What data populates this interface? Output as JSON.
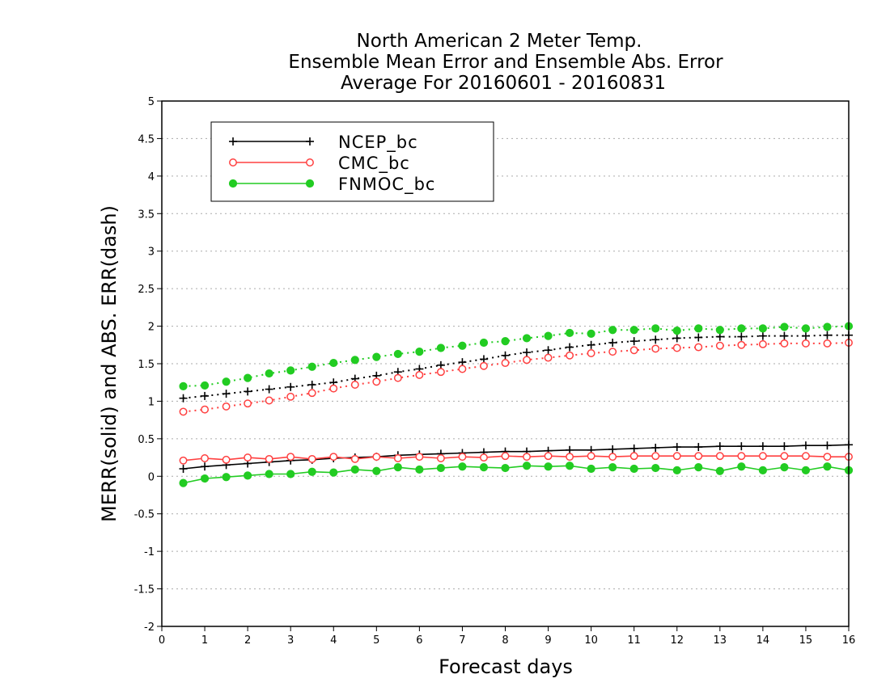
{
  "chart_data": {
    "type": "line",
    "title": [
      "North American 2 Meter Temp.",
      "Ensemble Mean Error and Ensemble Abs. Error",
      "Average For 20160601 - 20160831"
    ],
    "xlabel": "Forecast days",
    "ylabel": "MERR(solid) and ABS. ERR(dash)",
    "xlim": [
      0,
      16
    ],
    "ylim": [
      -2,
      5
    ],
    "xticks": [
      "0",
      "1",
      "2",
      "3",
      "4",
      "5",
      "6",
      "7",
      "8",
      "9",
      "10",
      "11",
      "12",
      "13",
      "14",
      "15",
      "16"
    ],
    "yticks": [
      "-2",
      "-1.5",
      "-1",
      "-0.5",
      "0",
      "0.5",
      "1",
      "1.5",
      "2",
      "2.5",
      "3",
      "3.5",
      "4",
      "4.5",
      "5"
    ],
    "grid": "horizontal dotted",
    "legend_position": "top-left",
    "x": [
      0.5,
      1,
      1.5,
      2,
      2.5,
      3,
      3.5,
      4,
      4.5,
      5,
      5.5,
      6,
      6.5,
      7,
      7.5,
      8,
      8.5,
      9,
      9.5,
      10,
      10.5,
      11,
      11.5,
      12,
      12.5,
      13,
      13.5,
      14,
      14.5,
      15,
      15.5,
      16
    ],
    "series": [
      {
        "name": "NCEP_bc",
        "color": "#000000",
        "marker": "plus",
        "style": "solid",
        "values": [
          0.1,
          0.13,
          0.15,
          0.17,
          0.19,
          0.21,
          0.22,
          0.24,
          0.25,
          0.26,
          0.28,
          0.29,
          0.3,
          0.31,
          0.32,
          0.33,
          0.33,
          0.34,
          0.35,
          0.35,
          0.36,
          0.37,
          0.38,
          0.39,
          0.39,
          0.4,
          0.4,
          0.4,
          0.4,
          0.41,
          0.41,
          0.42
        ]
      },
      {
        "name": "CMC_bc",
        "color": "#ff4040",
        "marker": "open-circle",
        "style": "solid",
        "values": [
          0.21,
          0.24,
          0.22,
          0.25,
          0.23,
          0.26,
          0.23,
          0.26,
          0.23,
          0.26,
          0.24,
          0.26,
          0.24,
          0.26,
          0.25,
          0.27,
          0.26,
          0.27,
          0.26,
          0.27,
          0.26,
          0.27,
          0.27,
          0.27,
          0.27,
          0.27,
          0.27,
          0.27,
          0.27,
          0.27,
          0.26,
          0.26
        ]
      },
      {
        "name": "FNMOC_bc",
        "color": "#22cc22",
        "marker": "filled-circle",
        "style": "solid",
        "values": [
          -0.09,
          -0.03,
          -0.01,
          0.01,
          0.03,
          0.03,
          0.06,
          0.05,
          0.09,
          0.07,
          0.12,
          0.09,
          0.11,
          0.13,
          0.12,
          0.11,
          0.14,
          0.13,
          0.14,
          0.1,
          0.12,
          0.1,
          0.11,
          0.08,
          0.12,
          0.07,
          0.13,
          0.08,
          0.12,
          0.08,
          0.13,
          0.08
        ]
      },
      {
        "name": "NCEP_bc abs. error",
        "color": "#000000",
        "marker": "plus",
        "style": "dotted",
        "values": [
          1.04,
          1.07,
          1.1,
          1.13,
          1.16,
          1.19,
          1.22,
          1.25,
          1.3,
          1.34,
          1.39,
          1.43,
          1.48,
          1.52,
          1.56,
          1.61,
          1.65,
          1.68,
          1.72,
          1.75,
          1.78,
          1.8,
          1.82,
          1.84,
          1.85,
          1.86,
          1.86,
          1.87,
          1.87,
          1.87,
          1.88,
          1.88
        ]
      },
      {
        "name": "CMC_bc abs. error",
        "color": "#ff4040",
        "marker": "open-circle",
        "style": "dotted",
        "values": [
          0.86,
          0.89,
          0.93,
          0.97,
          1.01,
          1.06,
          1.11,
          1.17,
          1.22,
          1.26,
          1.31,
          1.35,
          1.39,
          1.43,
          1.47,
          1.51,
          1.55,
          1.58,
          1.61,
          1.64,
          1.66,
          1.68,
          1.7,
          1.71,
          1.72,
          1.74,
          1.75,
          1.76,
          1.77,
          1.77,
          1.77,
          1.78
        ]
      },
      {
        "name": "FNMOC_bc abs. error",
        "color": "#22cc22",
        "marker": "filled-circle",
        "style": "dotted",
        "values": [
          1.2,
          1.21,
          1.26,
          1.31,
          1.37,
          1.41,
          1.46,
          1.51,
          1.55,
          1.59,
          1.63,
          1.66,
          1.71,
          1.74,
          1.78,
          1.8,
          1.84,
          1.87,
          1.91,
          1.9,
          1.95,
          1.95,
          1.97,
          1.94,
          1.97,
          1.95,
          1.97,
          1.97,
          1.99,
          1.97,
          1.99,
          2.0
        ]
      }
    ],
    "legend": [
      "NCEP_bc",
      "CMC_bc",
      "FNMOC_bc"
    ]
  }
}
